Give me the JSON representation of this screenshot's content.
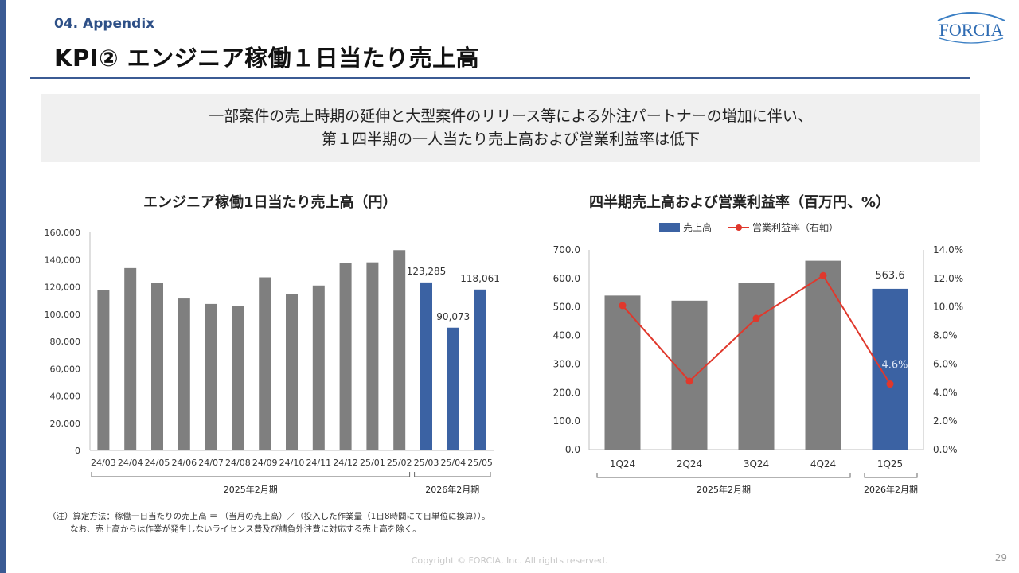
{
  "header": {
    "section": "04. Appendix",
    "title": "KPI② エンジニア稼働１日当たり売上高",
    "logo_text": "FORCIA"
  },
  "summary": {
    "line1": "一部案件の売上時期の延伸と大型案件のリリース等による外注パートナーの増加に伴い、",
    "line2": "第１四半期の一人当たり売上高および営業利益率は低下"
  },
  "colors": {
    "gray": "#7f7f7f",
    "blue": "#3b62a3",
    "red": "#e0382c",
    "accent": "#3b5b94"
  },
  "chart_data": [
    {
      "type": "bar",
      "title": "エンジニア稼働1日当たり売上高（円）",
      "categories": [
        "24/03",
        "24/04",
        "24/05",
        "24/06",
        "24/07",
        "24/08",
        "24/09",
        "24/10",
        "24/11",
        "24/12",
        "25/01",
        "25/02",
        "25/03",
        "25/04",
        "25/05"
      ],
      "values": [
        117500,
        133800,
        123200,
        111500,
        107500,
        106200,
        127000,
        115000,
        121000,
        137500,
        138000,
        147000,
        123285,
        90073,
        118061
      ],
      "highlight": [
        false,
        false,
        false,
        false,
        false,
        false,
        false,
        false,
        false,
        false,
        false,
        false,
        true,
        true,
        true
      ],
      "data_labels": {
        "12": "123,285",
        "13": "90,073",
        "14": "118,061"
      },
      "yticks": [
        "0",
        "20,000",
        "40,000",
        "60,000",
        "80,000",
        "100,000",
        "120,000",
        "140,000",
        "160,000"
      ],
      "ylim": [
        0,
        160000
      ],
      "periods": [
        {
          "label": "2025年2月期",
          "start": 0,
          "end": 11
        },
        {
          "label": "2026年2月期",
          "start": 12,
          "end": 14
        }
      ]
    },
    {
      "type": "bar+line",
      "title": "四半期売上高および営業利益率（百万円、%）",
      "categories": [
        "1Q24",
        "2Q24",
        "3Q24",
        "4Q24",
        "1Q25"
      ],
      "series": [
        {
          "name": "売上高",
          "type": "bar",
          "axis": "left",
          "values": [
            540,
            522,
            583,
            662,
            563.6
          ]
        },
        {
          "name": "営業利益率（右軸）",
          "type": "line",
          "axis": "right",
          "values": [
            10.1,
            4.8,
            9.2,
            12.2,
            4.6
          ]
        }
      ],
      "highlight": [
        false,
        false,
        false,
        false,
        true
      ],
      "data_labels": {
        "bar_4": "563.6",
        "line_4": "4.6%"
      },
      "yticks_left": [
        "0.0",
        "100.0",
        "200.0",
        "300.0",
        "400.0",
        "500.0",
        "600.0",
        "700.0"
      ],
      "yticks_right": [
        "0.0%",
        "2.0%",
        "4.0%",
        "6.0%",
        "8.0%",
        "10.0%",
        "12.0%",
        "14.0%"
      ],
      "ylim_left": [
        0,
        700
      ],
      "ylim_right": [
        0,
        14
      ],
      "legend_position": "top",
      "periods": [
        {
          "label": "2025年2月期",
          "start": 0,
          "end": 3
        },
        {
          "label": "2026年2月期",
          "start": 4,
          "end": 4
        }
      ]
    }
  ],
  "footer": {
    "note_line1": "（注）算定方法：稼働一日当たりの売上高 ＝ （当月の売上高）／（投入した作業量（1日8時間にて日単位に換算））。",
    "note_line2": "なお、売上高からは作業が発生しないライセンス費及び請負外注費に対応する売上高を除く。",
    "copyright": "Copyright © FORCIA, Inc. All rights reserved.",
    "page": "29"
  }
}
